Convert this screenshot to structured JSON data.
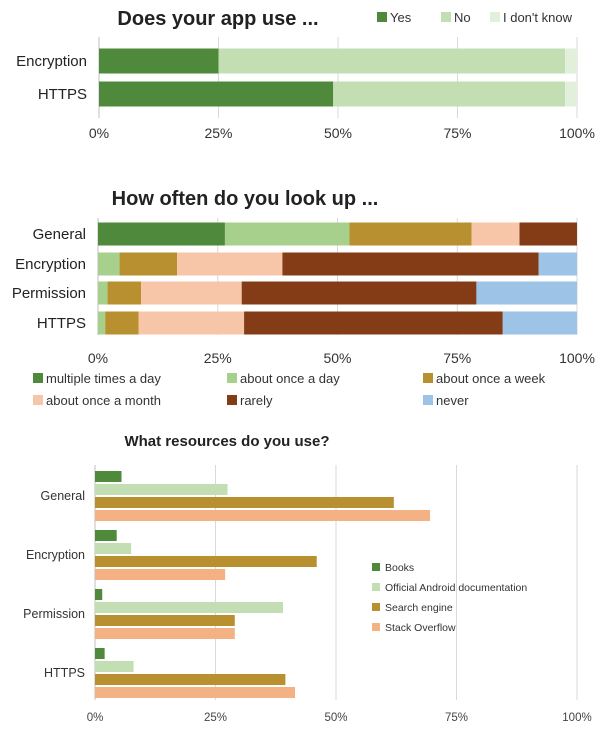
{
  "chart_data": [
    {
      "type": "bar",
      "orientation": "horizontal",
      "stacked": true,
      "title": "Does your app use ...",
      "categories": [
        "Encryption",
        "HTTPS"
      ],
      "series": [
        {
          "name": "Yes",
          "color": "#4f8a3c",
          "values": [
            25,
            49
          ]
        },
        {
          "name": "No",
          "color": "#c3deb3",
          "values": [
            72.5,
            48.5
          ]
        },
        {
          "name": "I don't know",
          "color": "#e2efda",
          "values": [
            2.5,
            2.5
          ]
        }
      ],
      "xlim": [
        0,
        100
      ],
      "ticks": [
        "0%",
        "25%",
        "50%",
        "75%",
        "100%"
      ],
      "legend": "top-right",
      "grid": true
    },
    {
      "type": "bar",
      "orientation": "horizontal",
      "stacked": true,
      "title": "How often do you look up ...",
      "categories": [
        "General",
        "Encryption",
        "Permission",
        "HTTPS"
      ],
      "series": [
        {
          "name": "multiple times a day",
          "color": "#4f8a3c",
          "values": [
            26.5,
            0,
            0,
            0
          ]
        },
        {
          "name": "about once a day",
          "color": "#a8d08d",
          "values": [
            26,
            4.5,
            2,
            1.5
          ]
        },
        {
          "name": "about once a week",
          "color": "#b8902f",
          "values": [
            25.5,
            12,
            7,
            7
          ]
        },
        {
          "name": "about once a month",
          "color": "#f7c6a8",
          "values": [
            10,
            22,
            21,
            22
          ]
        },
        {
          "name": "rarely",
          "color": "#843c16",
          "values": [
            12,
            53.5,
            49,
            54
          ]
        },
        {
          "name": "never",
          "color": "#9dc3e6",
          "values": [
            0,
            8,
            21,
            15.5
          ]
        }
      ],
      "xlim": [
        0,
        100
      ],
      "ticks": [
        "0%",
        "25%",
        "50%",
        "75%",
        "100%"
      ],
      "legend": "bottom",
      "grid": true
    },
    {
      "type": "bar",
      "orientation": "horizontal",
      "stacked": false,
      "title": "What resources do you use?",
      "categories": [
        "General",
        "Encryption",
        "Permission",
        "HTTPS"
      ],
      "series": [
        {
          "name": "Books",
          "color": "#4f8a3c",
          "values": [
            5.5,
            4.5,
            1.5,
            2
          ]
        },
        {
          "name": "Official Android documentation",
          "color": "#c3deb3",
          "values": [
            27.5,
            7.5,
            39,
            8
          ]
        },
        {
          "name": "Search engine",
          "color": "#b8902f",
          "values": [
            62,
            46,
            29,
            39.5
          ]
        },
        {
          "name": "Stack Overflow",
          "color": "#f4b183",
          "values": [
            69.5,
            27,
            29,
            41.5
          ]
        }
      ],
      "xlim": [
        0,
        100
      ],
      "ticks": [
        "0%",
        "25%",
        "50%",
        "75%",
        "100%"
      ],
      "legend": "right",
      "grid": true
    }
  ]
}
